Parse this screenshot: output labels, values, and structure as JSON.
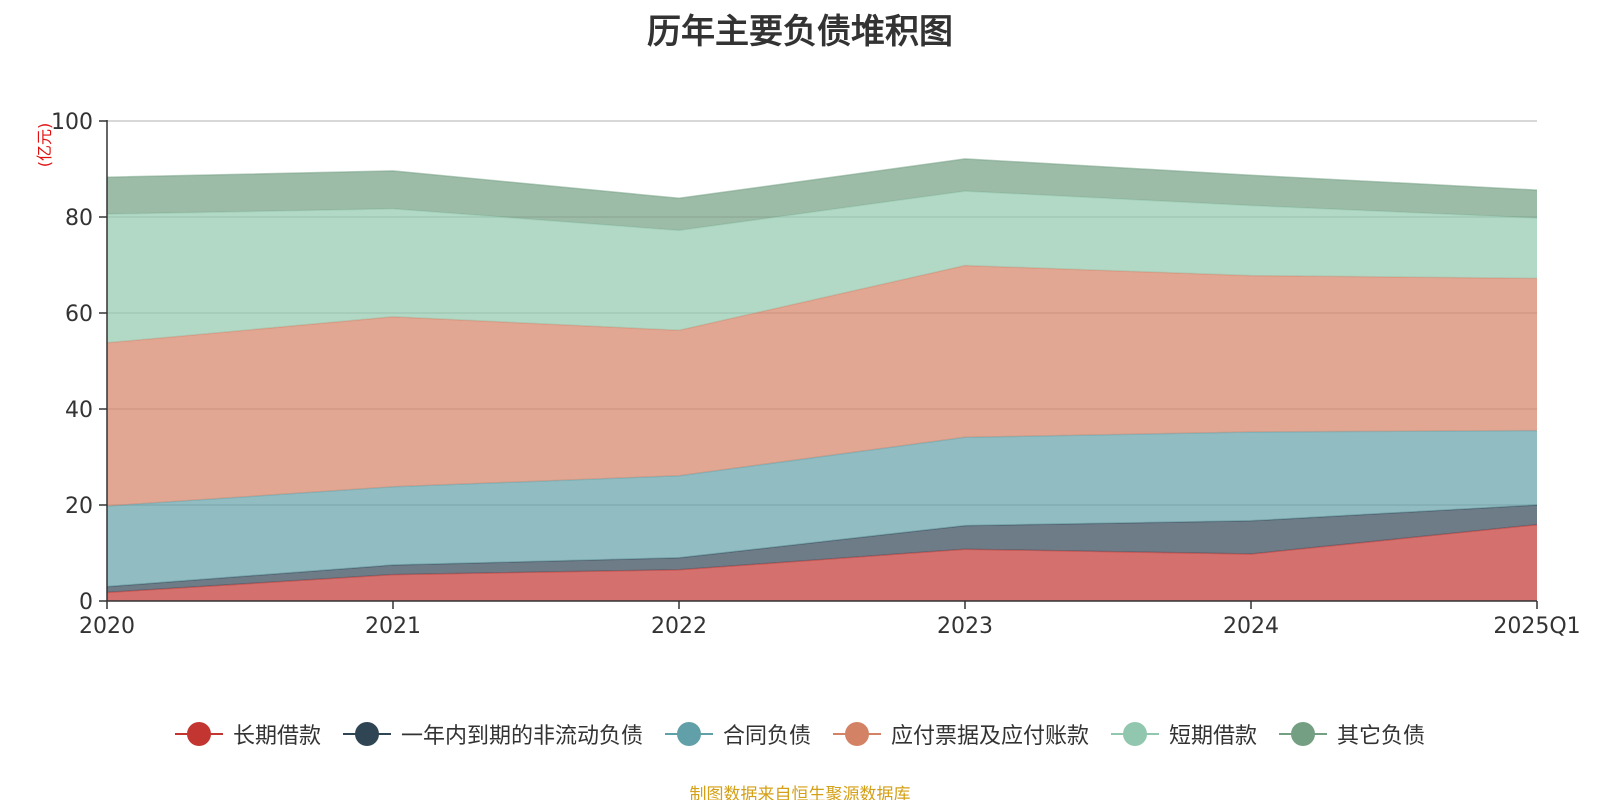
{
  "chart_data": {
    "type": "area",
    "stacked": true,
    "title": "历年主要负债堆积图",
    "unit": "(亿元)",
    "categories": [
      "2020",
      "2021",
      "2022",
      "2023",
      "2024",
      "2025Q1"
    ],
    "ylim": [
      0,
      100
    ],
    "yticks": [
      "0",
      "20",
      "40",
      "60",
      "80",
      "100"
    ],
    "grid": true,
    "legend_position": "bottom",
    "series": [
      {
        "name": "长期借款",
        "color": "#c23531",
        "values": [
          1.8,
          5.5,
          6.5,
          10.8,
          9.8,
          15.9
        ]
      },
      {
        "name": "一年内到期的非流动负债",
        "color": "#2f4554",
        "values": [
          1.2,
          2.0,
          2.5,
          4.9,
          6.9,
          4.1
        ]
      },
      {
        "name": "合同负债",
        "color": "#61a0a8",
        "values": [
          16.8,
          16.3,
          17.1,
          18.4,
          18.5,
          15.5
        ]
      },
      {
        "name": "应付票据及应付账款",
        "color": "#d48265",
        "values": [
          34.0,
          35.4,
          30.3,
          35.8,
          32.6,
          31.7
        ]
      },
      {
        "name": "短期借款",
        "color": "#91c7ae",
        "values": [
          26.8,
          22.5,
          20.8,
          15.5,
          14.6,
          12.6
        ]
      },
      {
        "name": "其它负债",
        "color": "#749f83",
        "values": [
          7.7,
          7.9,
          6.7,
          6.7,
          6.3,
          5.8
        ]
      }
    ]
  },
  "footer": {
    "source_note": "制图数据来自恒生聚源数据库"
  }
}
